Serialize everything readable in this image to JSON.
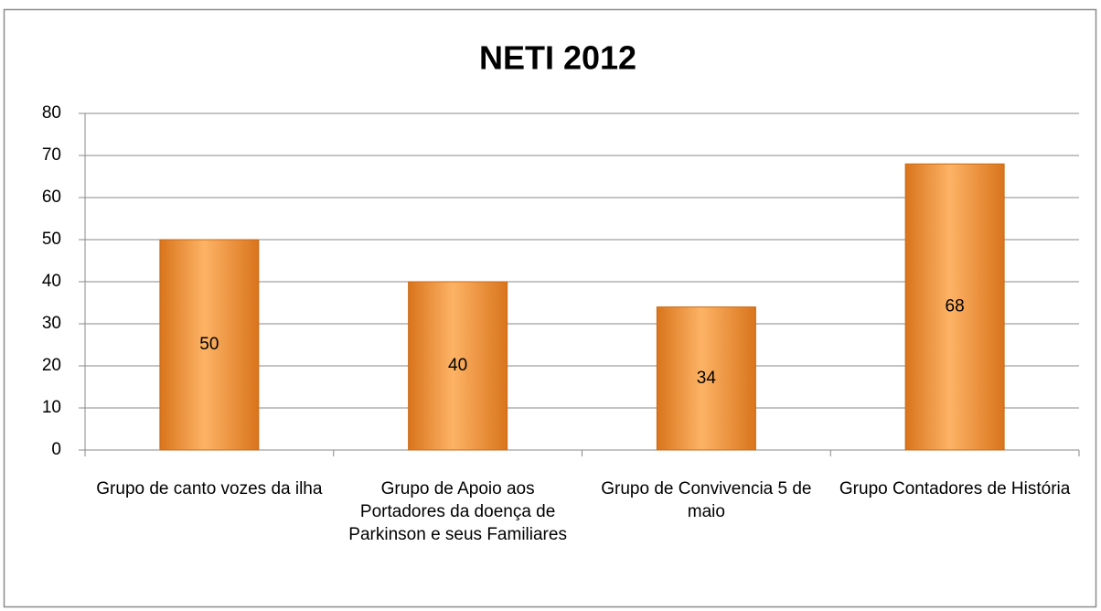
{
  "chart_data": {
    "type": "bar",
    "title": "NETI 2012",
    "categories": [
      "Grupo de canto vozes da ilha",
      "Grupo de Apoio aos Portadores da doença de Parkinson e seus Familiares",
      "Grupo de Convivencia 5 de maio",
      "Grupo Contadores de História"
    ],
    "values": [
      50,
      40,
      34,
      68
    ],
    "color": "#f28c28",
    "ylim": [
      0,
      80
    ],
    "yticks": [
      0,
      10,
      20,
      30,
      40,
      50,
      60,
      70,
      80
    ],
    "grid": true
  }
}
